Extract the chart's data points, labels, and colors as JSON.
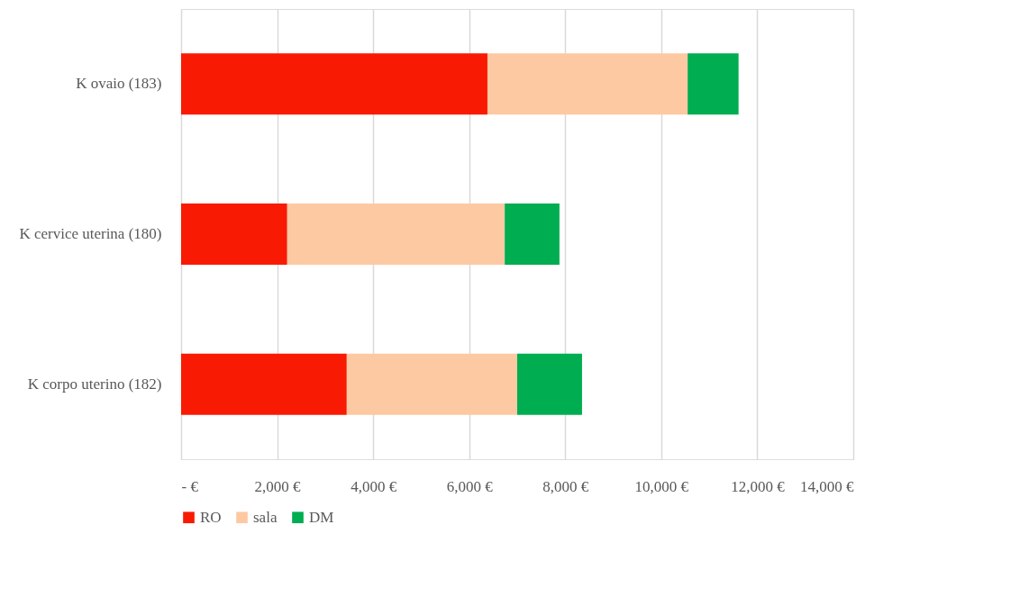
{
  "chart_data": {
    "type": "bar",
    "orientation": "horizontal",
    "stacked": true,
    "categories": [
      "K ovaio (183)",
      "K cervice uterina (180)",
      "K corpo uterino (182)"
    ],
    "series": [
      {
        "name": "RO",
        "color": "#f91a03",
        "values": [
          6380,
          2210,
          3450
        ]
      },
      {
        "name": "sala",
        "color": "#fdc9a2",
        "values": [
          4170,
          4530,
          3550
        ]
      },
      {
        "name": "DM",
        "color": "#00ad50",
        "values": [
          1060,
          1140,
          1350
        ]
      }
    ],
    "xlim": [
      0,
      14000
    ],
    "xticks": [
      {
        "value": 0,
        "label": "-  €"
      },
      {
        "value": 2000,
        "label": "2,000 €"
      },
      {
        "value": 4000,
        "label": "4,000 €"
      },
      {
        "value": 6000,
        "label": "6,000 €"
      },
      {
        "value": 8000,
        "label": "8,000 €"
      },
      {
        "value": 10000,
        "label": "10,000 €"
      },
      {
        "value": 12000,
        "label": "12,000 €"
      },
      {
        "value": 14000,
        "label": "14,000 €"
      }
    ],
    "grid": "x",
    "legend": "bottom"
  }
}
